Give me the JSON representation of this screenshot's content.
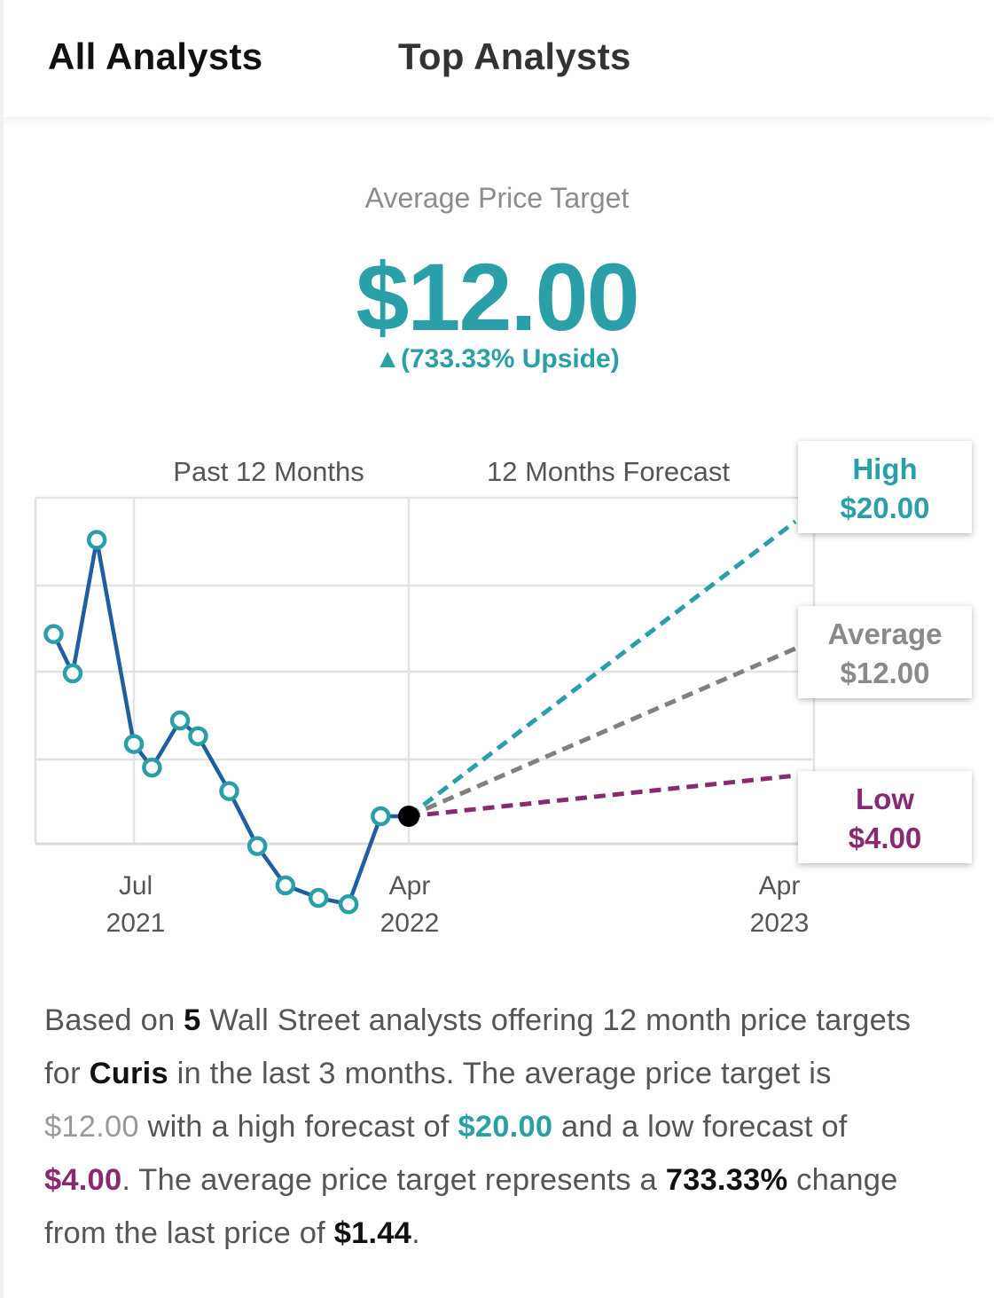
{
  "tabs": {
    "all_label": "All Analysts",
    "top_label": "Top Analysts"
  },
  "summary": {
    "label": "Average Price Target",
    "value": "$12.00",
    "upside": "▲(733.33% Upside)"
  },
  "chart_data": {
    "type": "line",
    "sections": {
      "past": "Past 12 Months",
      "forecast": "12 Months Forecast"
    },
    "x_ticks": [
      {
        "month": "Jul",
        "year": "2021"
      },
      {
        "month": "Apr",
        "year": "2022"
      },
      {
        "month": "Apr",
        "year": "2023"
      }
    ],
    "series": [
      {
        "x": [
          "2021-04-12",
          "2021-05-01",
          "2021-05-25",
          "2021-07-01",
          "2021-07-19",
          "2021-08-16",
          "2021-09-03",
          "2021-10-04",
          "2021-11-01",
          "2021-11-29",
          "2022-01-01",
          "2022-01-31",
          "2022-03-04",
          "2022-04-01"
        ],
        "values": [
          2.6,
          2.35,
          3.2,
          1.9,
          1.75,
          2.05,
          1.95,
          1.6,
          1.25,
          1.0,
          0.92,
          0.88,
          1.44,
          1.44
        ]
      }
    ],
    "forecast": {
      "start": {
        "date": "2022-04-01",
        "value": 1.44
      },
      "end_date": "2023-04-01",
      "high": {
        "label": "High",
        "value": 20.0,
        "display": "$20.00",
        "color": "#2a9fa8"
      },
      "average": {
        "label": "Average",
        "value": 12.0,
        "display": "$12.00",
        "color": "#808080"
      },
      "low": {
        "label": "Low",
        "value": 4.0,
        "display": "$4.00",
        "color": "#8a2a6e"
      }
    },
    "grid": true
  },
  "description": {
    "p1": "Based on ",
    "analysts": "5",
    "p2": " Wall Street analysts offering 12 month price targets for ",
    "company": "Curis",
    "p3": " in the last 3 months. The average price target is ",
    "avg": "$12.00",
    "p4": " with a high forecast of ",
    "high": "$20.00",
    "p5": " and a low forecast of ",
    "low": "$4.00",
    "p6": ". The average price target represents a ",
    "change": "733.33%",
    "p7": " change from the last price of ",
    "last_price": "$1.44",
    "p8": "."
  },
  "colors": {
    "accent": "#2a9fa8",
    "line": "#1f5f9e",
    "low": "#8a2a6e",
    "avg": "#808080"
  }
}
